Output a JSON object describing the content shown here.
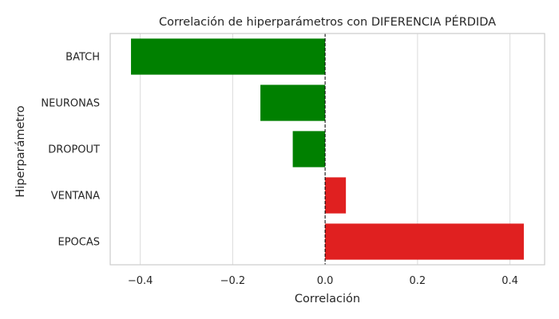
{
  "chart_data": {
    "type": "bar",
    "orientation": "horizontal",
    "title": "Correlación de hiperparámetros con DIFERENCIA PÉRDIDA",
    "xlabel": "Correlación",
    "ylabel": "Hiperparámetro",
    "categories": [
      "BATCH",
      "NEURONAS",
      "DROPOUT",
      "VENTANA",
      "EPOCAS"
    ],
    "values": [
      -0.42,
      -0.14,
      -0.07,
      0.045,
      0.43
    ],
    "xlim": [
      -0.465,
      0.475
    ],
    "xticks": [
      -0.4,
      -0.2,
      0.0,
      0.2,
      0.4
    ],
    "xtick_labels": [
      "−0.4",
      "−0.2",
      "0.0",
      "0.2",
      "0.4"
    ],
    "grid": "vertical",
    "reference_line": 0,
    "colors": {
      "negative": "#008000",
      "positive": "#e02020",
      "grid": "#dcdcdc",
      "frame": "#cccccc",
      "reference": "#000000"
    }
  }
}
